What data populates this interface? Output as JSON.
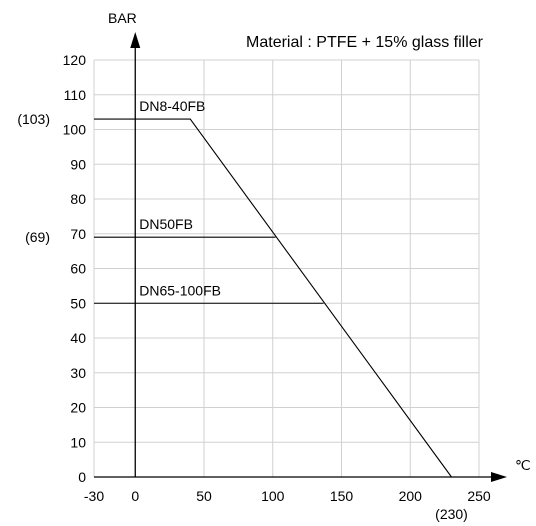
{
  "chart_data": {
    "type": "line",
    "title": "Material : PTFE + 15% glass filler",
    "ylabel": "BAR",
    "xlabel": "℃",
    "xlim": [
      -30,
      250
    ],
    "ylim": [
      0,
      120
    ],
    "x_ticks": [
      -30,
      0,
      50,
      100,
      150,
      200,
      250
    ],
    "y_ticks": [
      0,
      10,
      20,
      30,
      40,
      50,
      60,
      70,
      80,
      90,
      100,
      110,
      120
    ],
    "grid": true,
    "series": [
      {
        "name": "DN8-40FB",
        "points": [
          {
            "x": -30,
            "y": 103
          },
          {
            "x": 40,
            "y": 103
          },
          {
            "x": 230,
            "y": 0
          }
        ]
      },
      {
        "name": "DN50FB",
        "points": [
          {
            "x": -30,
            "y": 69
          },
          {
            "x": 102,
            "y": 69
          }
        ]
      },
      {
        "name": "DN65-100FB",
        "points": [
          {
            "x": -30,
            "y": 50
          },
          {
            "x": 137,
            "y": 50
          }
        ]
      }
    ],
    "annotations": {
      "y_callouts": [
        {
          "text": "(103)",
          "value": 103
        },
        {
          "text": "(69)",
          "value": 69
        }
      ],
      "x_callouts": [
        {
          "text": "(230)",
          "value": 230
        }
      ]
    }
  }
}
